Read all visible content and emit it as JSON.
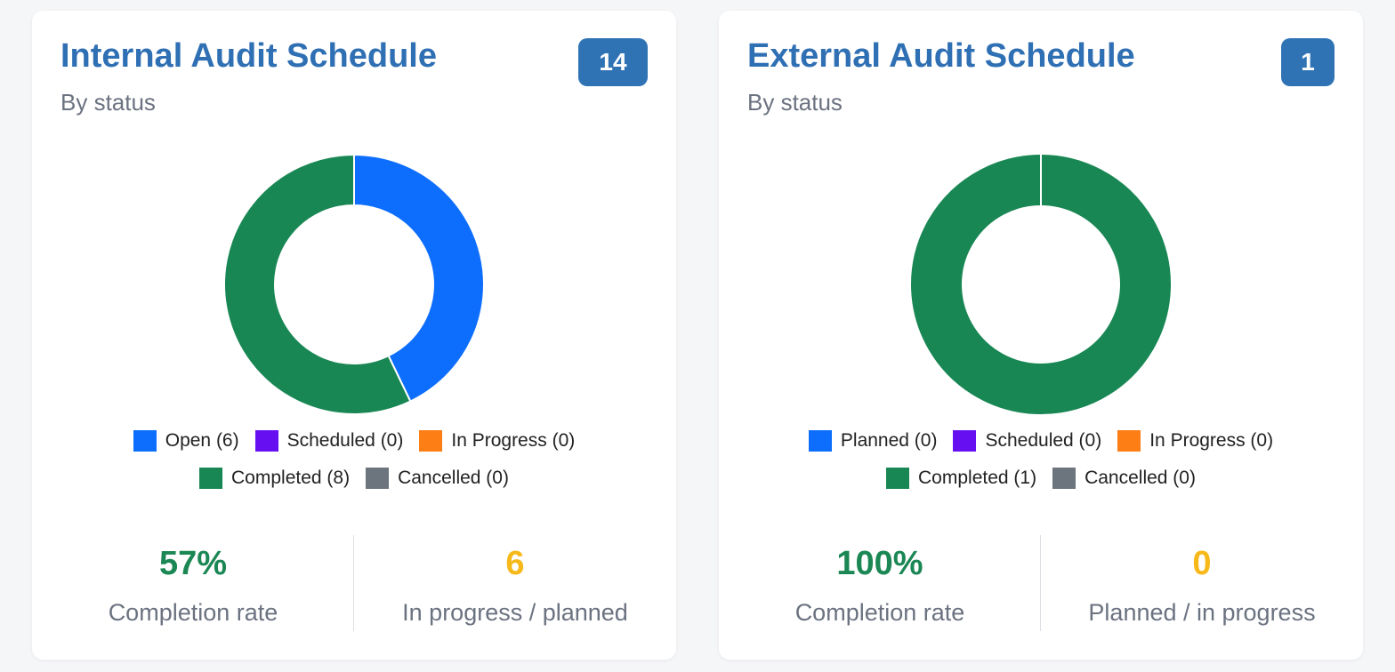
{
  "colors": {
    "open": "#0d6efd",
    "scheduled": "#6610f2",
    "in_progress": "#fd7e14",
    "completed": "#198754",
    "cancelled": "#6c757d",
    "title": "#2f6fb3",
    "badge": "#2f73b5"
  },
  "cards": [
    {
      "title": "Internal Audit Schedule",
      "subtitle": "By status",
      "badge": "14",
      "stats": [
        {
          "value": "57%",
          "label": "Completion rate"
        },
        {
          "value": "6",
          "label": "In progress / planned"
        }
      ]
    },
    {
      "title": "External Audit Schedule",
      "subtitle": "By status",
      "badge": "1",
      "stats": [
        {
          "value": "100%",
          "label": "Completion rate"
        },
        {
          "value": "0",
          "label": "Planned / in progress"
        }
      ]
    }
  ],
  "chart_data": [
    {
      "type": "pie",
      "title": "Internal Audit Schedule",
      "categories": [
        "Open",
        "Scheduled",
        "In Progress",
        "Completed",
        "Cancelled"
      ],
      "values": [
        6,
        0,
        0,
        8,
        0
      ],
      "legend_labels": [
        "Open (6)",
        "Scheduled (0)",
        "In Progress (0)",
        "Completed (8)",
        "Cancelled (0)"
      ],
      "colors": [
        "#0d6efd",
        "#6610f2",
        "#fd7e14",
        "#198754",
        "#6c757d"
      ],
      "donut": true,
      "legend_position": "bottom"
    },
    {
      "type": "pie",
      "title": "External Audit Schedule",
      "categories": [
        "Planned",
        "Scheduled",
        "In Progress",
        "Completed",
        "Cancelled"
      ],
      "values": [
        0,
        0,
        0,
        1,
        0
      ],
      "legend_labels": [
        "Planned (0)",
        "Scheduled (0)",
        "In Progress (0)",
        "Completed (1)",
        "Cancelled (0)"
      ],
      "colors": [
        "#0d6efd",
        "#6610f2",
        "#fd7e14",
        "#198754",
        "#6c757d"
      ],
      "donut": true,
      "legend_position": "bottom"
    }
  ]
}
